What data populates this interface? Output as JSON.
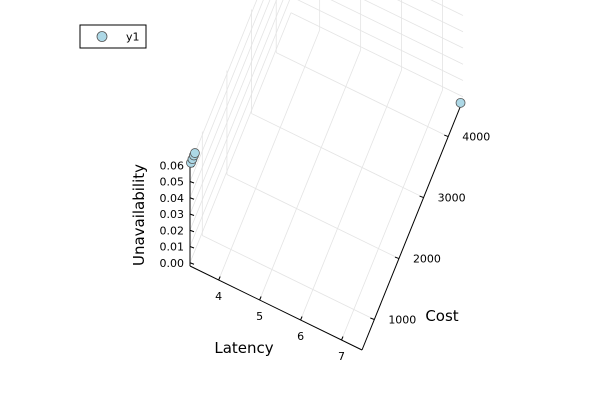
{
  "chart_data": {
    "type": "scatter",
    "projection": "3d",
    "grid": true,
    "legend_position": "top-left",
    "xlabel": "Latency",
    "ylabel": "Cost",
    "zlabel": "Unavailability",
    "x_ticks": [
      4,
      5,
      6,
      7
    ],
    "y_ticks": [
      1000,
      2000,
      3000,
      4000
    ],
    "z_ticks": [
      0.0,
      0.01,
      0.02,
      0.03,
      0.04,
      0.05,
      0.06
    ],
    "z_tick_labels": [
      "0.00",
      "0.01",
      "0.02",
      "0.03",
      "0.04",
      "0.05",
      "0.06"
    ],
    "xlim": [
      3.3,
      7.5
    ],
    "ylim": [
      500,
      4600
    ],
    "zlim": [
      -0.002,
      0.062
    ],
    "series": [
      {
        "name": "y1",
        "color": "#add8e6",
        "edge_color": "#555555",
        "points": [
          {
            "x": 7.5,
            "y": 4500,
            "z": 0.0
          },
          {
            "x": 3.3,
            "y": 540,
            "z": 0.06
          },
          {
            "x": 3.3,
            "y": 600,
            "z": 0.06
          },
          {
            "x": 3.3,
            "y": 660,
            "z": 0.06
          },
          {
            "x": 3.3,
            "y": 700,
            "z": 0.06
          }
        ]
      }
    ]
  }
}
